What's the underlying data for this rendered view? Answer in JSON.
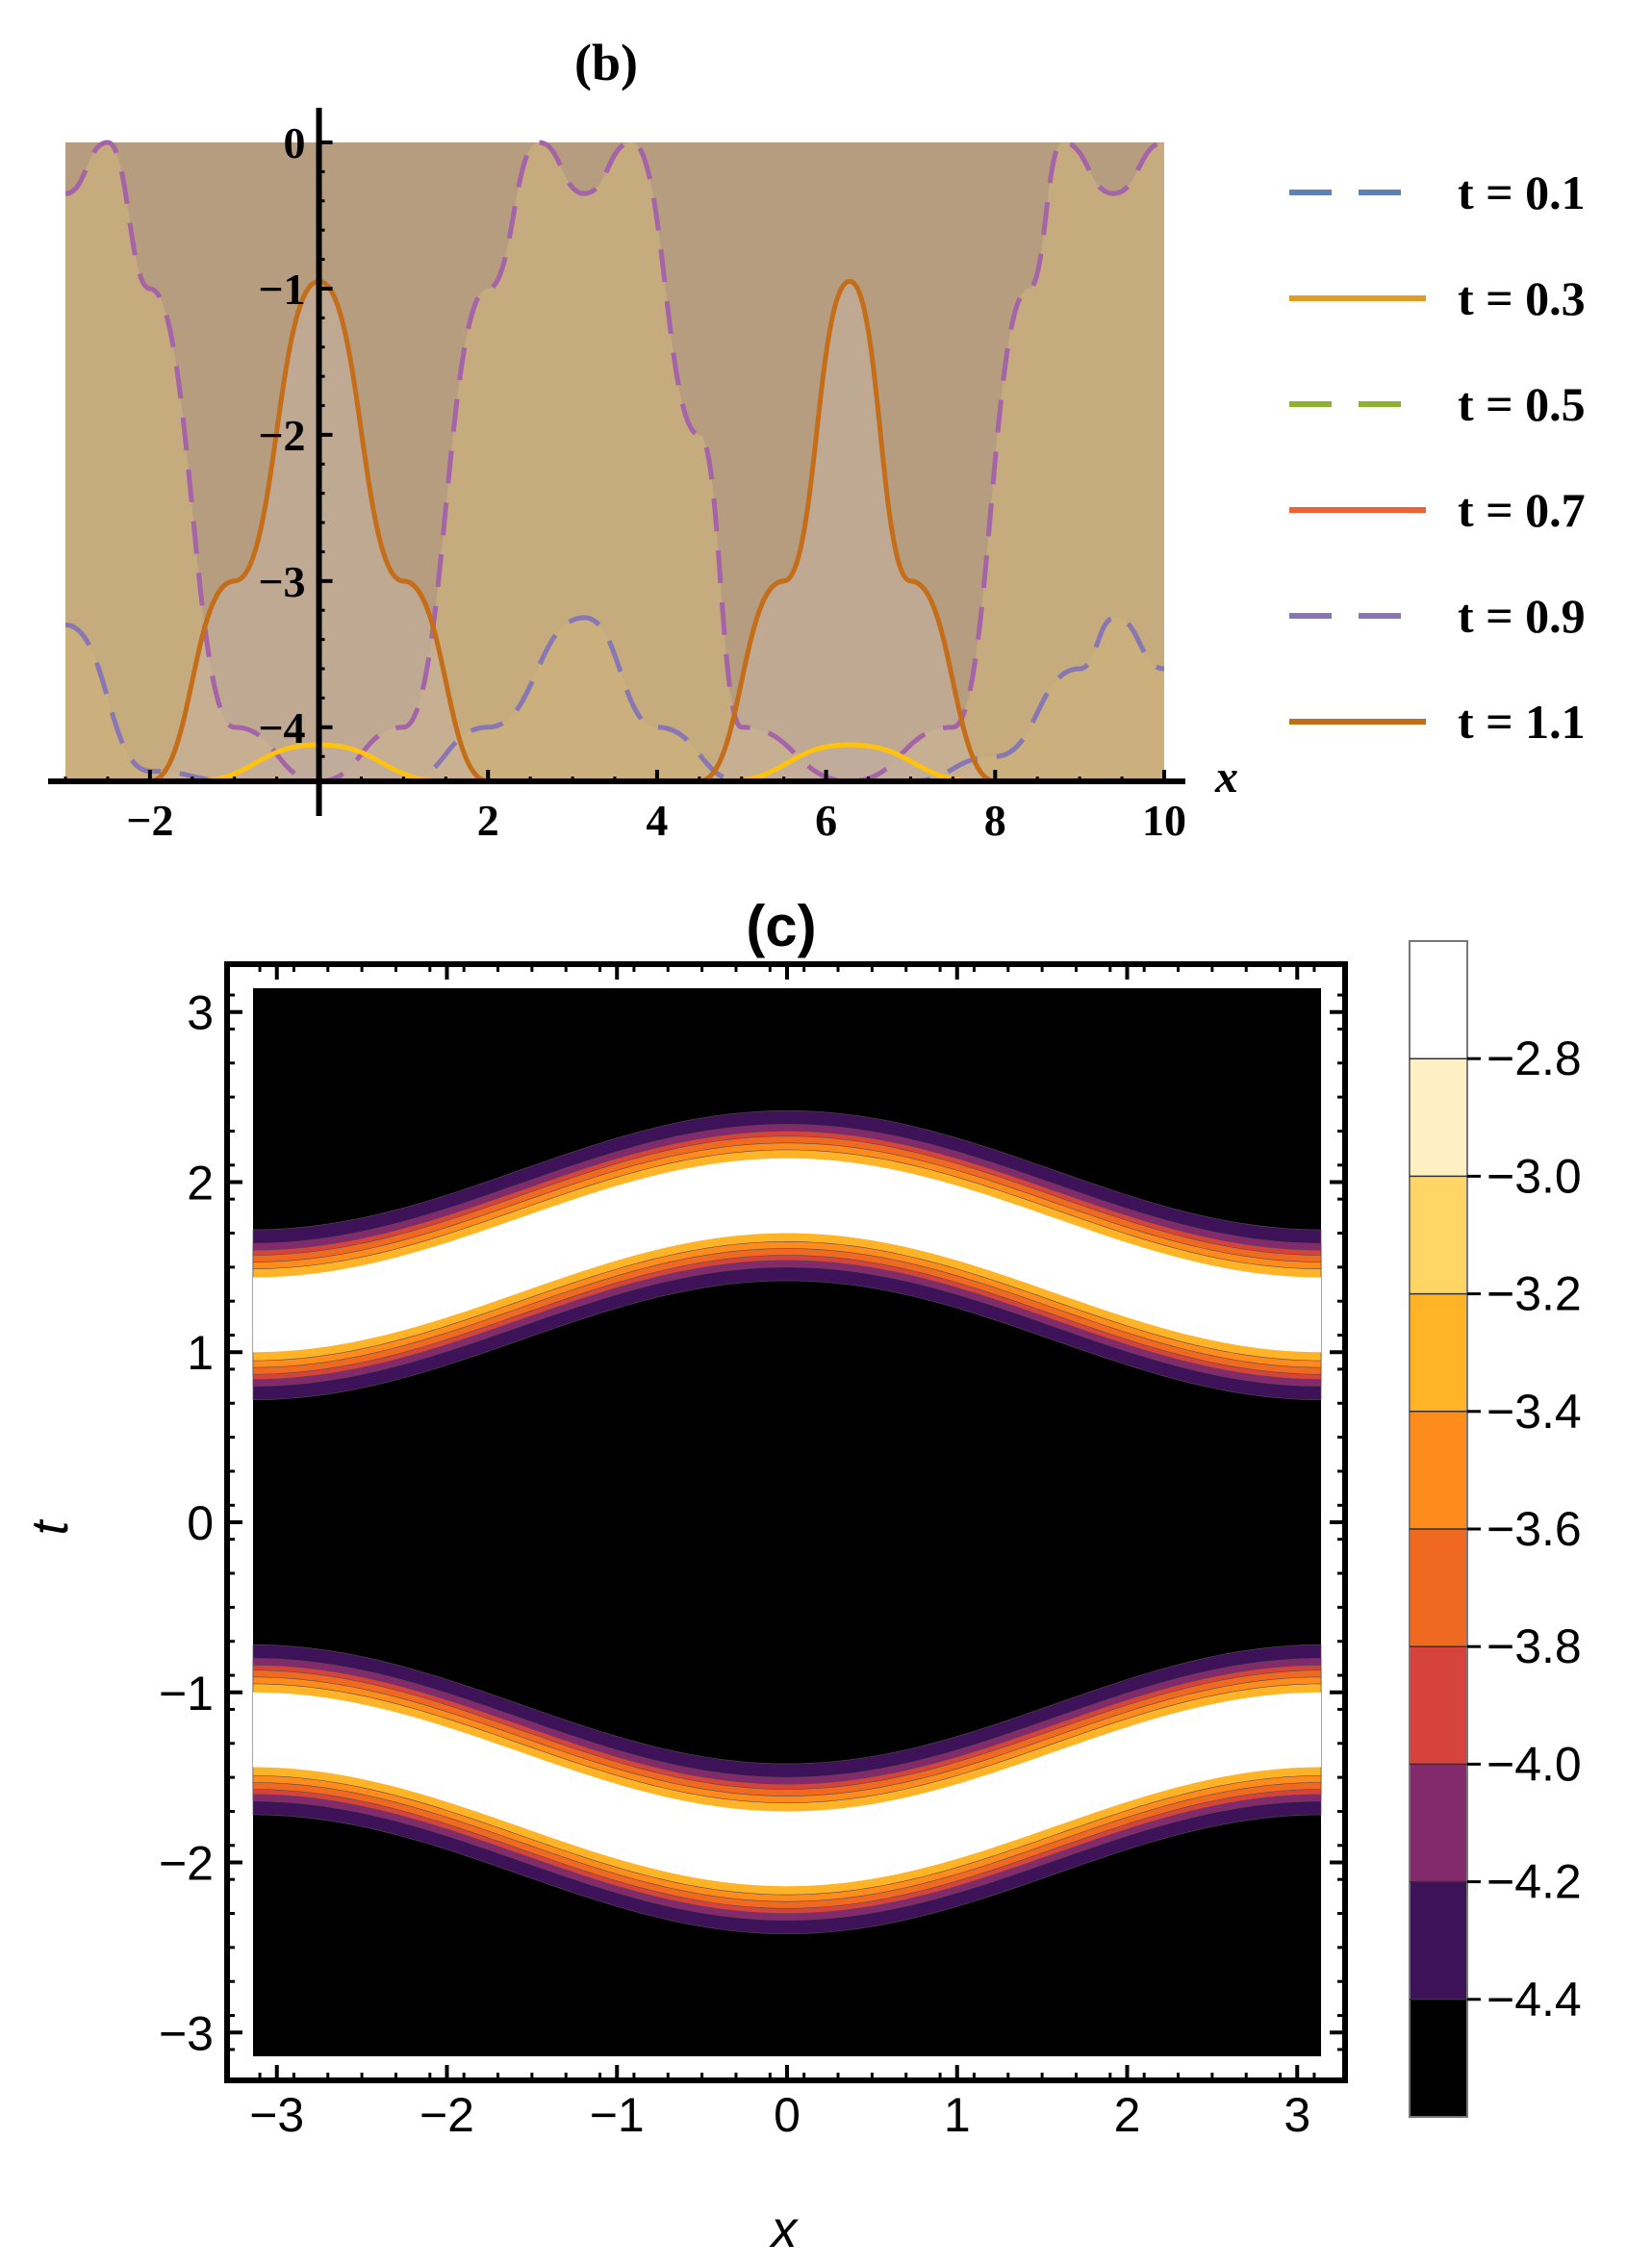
{
  "chart_data": [
    {
      "id": "b",
      "type": "line",
      "title": "(b)",
      "xlabel": "x",
      "ylabel": "",
      "xlim": [
        -3,
        10
      ],
      "ylim": [
        -4.37,
        0
      ],
      "x_ticks": [
        -2,
        2,
        4,
        6,
        8,
        10
      ],
      "x_tick_labels": [
        "−2",
        "2",
        "4",
        "6",
        "8",
        "10"
      ],
      "y_ticks": [
        0,
        -1,
        -2,
        -3,
        -4
      ],
      "y_tick_labels": [
        "0",
        "−1",
        "−2",
        "−3",
        "−4"
      ],
      "legend_position": "right",
      "filled": true,
      "series": [
        {
          "name": "t = 0.1",
          "color": "#5e81b5",
          "dashed": true,
          "fill": "#d9c089"
        },
        {
          "name": "t = 0.3",
          "color": "#e19c24",
          "dashed": false,
          "fill": "#e3c987"
        },
        {
          "name": "t = 0.5",
          "color": "#8fb032",
          "dashed": true,
          "fill": "#c9b87a"
        },
        {
          "name": "t = 0.7",
          "color": "#eb6235",
          "dashed": false,
          "fill": "#c7a077"
        },
        {
          "name": "t = 0.9",
          "color": "#8778b3",
          "dashed": true,
          "fill": "#b39a8a"
        },
        {
          "name": "t = 1.1",
          "color": "#c56e1a",
          "dashed": false,
          "fill": "#b79a8a"
        }
      ],
      "visible_curves": [
        {
          "legend": "t = 0.9",
          "color": "#8778b3",
          "dashed": true,
          "x": [
            -3,
            -2,
            -1,
            0,
            1,
            2,
            3.14,
            4,
            5,
            6.28,
            7,
            8,
            9,
            9.42,
            10
          ],
          "y": [
            -3.3,
            -4.3,
            -4.37,
            -4.37,
            -4.37,
            -4.0,
            -3.25,
            -4.0,
            -4.37,
            -4.37,
            -4.37,
            -4.2,
            -3.6,
            -3.25,
            -3.6
          ]
        },
        {
          "legend": "upper dashed",
          "color": "#a563a8",
          "dashed": true,
          "x": [
            -3,
            -2.5,
            -2,
            -1,
            0,
            1,
            2,
            2.6,
            3.14,
            3.7,
            4.5,
            5,
            6.28,
            7.5,
            8.4,
            8.8,
            9.4,
            10
          ],
          "y": [
            -0.35,
            0,
            -1.0,
            -4.0,
            -4.37,
            -4.0,
            -1.0,
            0,
            -0.35,
            0,
            -2.0,
            -4.0,
            -4.37,
            -4.0,
            -1.0,
            0,
            -0.35,
            0
          ]
        },
        {
          "legend": "t = 0.3",
          "color": "#ffc20e",
          "dashed": false,
          "x": [
            -1.5,
            0,
            1.5,
            4.8,
            6.28,
            7.8
          ],
          "y": [
            -4.37,
            -4.12,
            -4.37,
            -4.37,
            -4.12,
            -4.37
          ]
        },
        {
          "legend": "t = 1.1",
          "color": "#c56e1a",
          "dashed": false,
          "x": [
            -2,
            -1,
            0,
            1,
            2,
            4.5,
            5.5,
            6.28,
            7,
            8
          ],
          "y": [
            -4.37,
            -3.0,
            -0.95,
            -3.0,
            -4.37,
            -4.37,
            -3.0,
            -0.95,
            -3.0,
            -4.37
          ]
        }
      ]
    },
    {
      "id": "c",
      "type": "heatmap",
      "title": "(c)",
      "xlabel": "x",
      "ylabel": "t",
      "xlim": [
        -3.14,
        3.14
      ],
      "ylim": [
        -3.14,
        3.14
      ],
      "x_ticks": [
        -3,
        -2,
        -1,
        0,
        1,
        2,
        3
      ],
      "x_tick_labels": [
        "−3",
        "−2",
        "−1",
        "0",
        "1",
        "2",
        "3"
      ],
      "y_ticks": [
        3,
        2,
        1,
        0,
        -1,
        -2,
        -3
      ],
      "y_tick_labels": [
        "3",
        "2",
        "1",
        "0",
        "−1",
        "−2",
        "−3"
      ],
      "bands": [
        {
          "name": "upper",
          "x": [
            -3.14,
            -1.57,
            0,
            1.57,
            3.14
          ],
          "center_t": [
            1.22,
            1.6,
            1.92,
            1.6,
            1.22
          ]
        },
        {
          "name": "lower",
          "x": [
            -3.14,
            -1.57,
            0,
            1.57,
            3.14
          ],
          "center_t": [
            -1.22,
            -1.6,
            -1.92,
            -1.6,
            -1.22
          ]
        }
      ],
      "band_halfwidth_white": 0.22,
      "band_edge_offsets": [
        0.22,
        0.27,
        0.31,
        0.35,
        0.38,
        0.42,
        0.5
      ],
      "colorbar": {
        "levels": [
          "−2.8",
          "−3.0",
          "−3.2",
          "−3.4",
          "−3.6",
          "−3.8",
          "−4.0",
          "−4.2",
          "−4.4"
        ],
        "colors": [
          "#ffffff",
          "#fff0c4",
          "#ffd565",
          "#ffb326",
          "#fd8c1c",
          "#ef6a20",
          "#d5433c",
          "#832a6c",
          "#3d1259",
          "#000000"
        ]
      }
    }
  ]
}
